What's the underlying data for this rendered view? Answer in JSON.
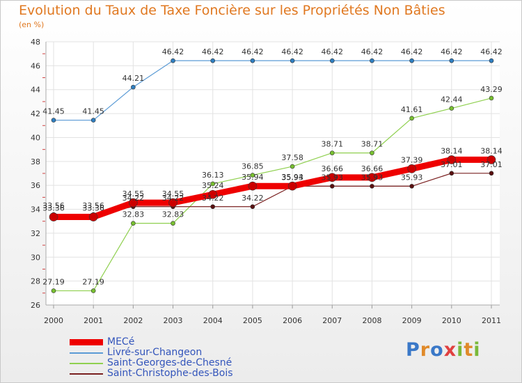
{
  "header": {
    "title": "Evolution du Taux de Taxe Foncière sur les Propriétés Non Bâties",
    "unit": "(en %)"
  },
  "logo": {
    "text": "Proxiti",
    "letters": [
      "P",
      "r",
      "o",
      "x",
      "i",
      "t",
      "i"
    ],
    "colors": [
      "#3a78c8",
      "#e08a2a",
      "#3a78c8",
      "#e04040",
      "#7ab93a",
      "#e08a2a",
      "#7ab93a"
    ]
  },
  "chart_data": {
    "type": "line",
    "title": "Evolution du Taux de Taxe Foncière sur les Propriétés Non Bâties",
    "ylabel": "(en %)",
    "xlabel": "",
    "ylim": [
      26,
      48
    ],
    "yticks": [
      26,
      28,
      30,
      32,
      34,
      36,
      38,
      40,
      42,
      44,
      46,
      48
    ],
    "grid": true,
    "legend_position": "bottom-left",
    "x": [
      "2000",
      "2001",
      "2002",
      "2003",
      "2004",
      "2005",
      "2006",
      "2007",
      "2008",
      "2009",
      "2010",
      "2011"
    ],
    "series": [
      {
        "name": "MECé",
        "color": "#ee0000",
        "values": [
          33.36,
          33.36,
          34.55,
          34.55,
          35.24,
          35.94,
          35.94,
          36.66,
          36.66,
          37.39,
          38.14,
          38.14
        ],
        "labels": [
          "33.36",
          "33.36",
          "34.55",
          "34.55",
          "35.24",
          "35.94",
          "35.94",
          "36.66",
          "36.66",
          "37.39",
          "38.14",
          "38.14"
        ]
      },
      {
        "name": "Livré-sur-Changeon",
        "color": "#5b9bd5",
        "values": [
          41.45,
          41.45,
          44.21,
          46.42,
          46.42,
          46.42,
          46.42,
          46.42,
          46.42,
          46.42,
          46.42,
          46.42
        ],
        "labels": [
          "41.45",
          "41.45",
          "44.21",
          "46.42",
          "46.42",
          "46.42",
          "46.42",
          "46.42",
          "46.42",
          "46.42",
          "46.42",
          "46.42"
        ]
      },
      {
        "name": "Saint-Georges-de-Chesné",
        "color": "#8fd04f",
        "values": [
          27.19,
          27.19,
          32.83,
          32.83,
          36.13,
          36.85,
          37.58,
          38.71,
          38.71,
          41.61,
          42.44,
          43.29
        ],
        "labels": [
          "27.19",
          "27.19",
          "32.83",
          "32.83",
          "36.13",
          "36.85",
          "37.58",
          "38.71",
          "38.71",
          "41.61",
          "42.44",
          "43.29"
        ]
      },
      {
        "name": "Saint-Christophe-des-Bois",
        "color": "#7a2020",
        "values": [
          33.56,
          33.56,
          34.22,
          34.22,
          34.22,
          34.22,
          35.93,
          35.93,
          35.93,
          35.93,
          37.01,
          37.01
        ],
        "labels": [
          "33.56",
          "33.56",
          "34.22",
          "34.22",
          "34.22",
          "34.22",
          "35.93",
          "35.93",
          "35.93",
          "35.93",
          "37.01",
          "37.01"
        ]
      }
    ]
  }
}
